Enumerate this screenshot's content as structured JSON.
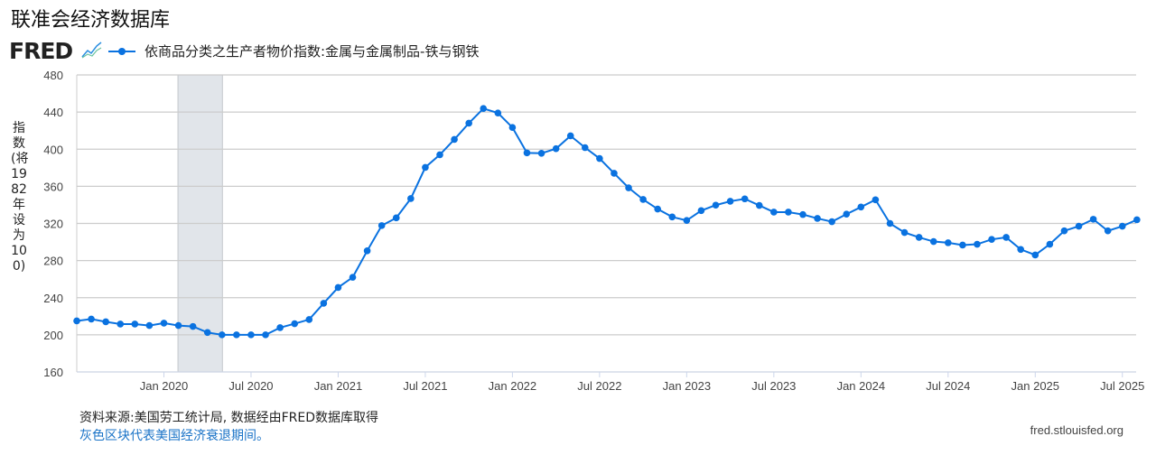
{
  "header": {
    "title": "联准会经济数据库",
    "logo": "FRED"
  },
  "legend": {
    "label": "依商品分类之生产者物价指数:金属与金属制品-铁与钢铁"
  },
  "footer": {
    "source": "资料来源:美国劳工统计局, 数据经由FRED数据库取得",
    "recession_note": "灰色区块代表美国经济衰退期间。",
    "site": "fred.stlouisfed.org"
  },
  "colors": {
    "series": "#0a72e0",
    "recession": "#e1e5ea",
    "grid": "#cccccc"
  },
  "chart_data": {
    "type": "line",
    "title": "",
    "ylabel": "指数(将1982年设为100)",
    "xlabel": "",
    "ylim": [
      160,
      480
    ],
    "yticks": [
      160,
      200,
      240,
      280,
      320,
      360,
      400,
      440,
      480
    ],
    "xtick_labels": [
      "Jan 2020",
      "Jul 2020",
      "Jan 2021",
      "Jul 2021",
      "Jan 2022",
      "Jul 2022",
      "Jan 2023",
      "Jul 2023",
      "Jan 2024",
      "Jul 2024",
      "Jan 2025",
      "Jul 2025"
    ],
    "grid": true,
    "legend_position": "top-left",
    "recessions": [
      {
        "start": "2020-02",
        "end": "2020-04"
      }
    ],
    "start": "2019-07",
    "frequency": "monthly",
    "series": [
      {
        "name": "依商品分类之生产者物价指数:金属与金属制品-铁与钢铁",
        "values": [
          215,
          217,
          214,
          211.6,
          211.6,
          210,
          212.6,
          210,
          209,
          202.5,
          200,
          200,
          200,
          200,
          207.7,
          212,
          216.5,
          234,
          251,
          262,
          290.5,
          317.7,
          326,
          346.8,
          380.4,
          394,
          410.5,
          428,
          443.8,
          439,
          423.4,
          396,
          395.6,
          400.5,
          414.4,
          401.7,
          390,
          374,
          358.4,
          345.8,
          335.5,
          327,
          323.2,
          333.8,
          339.7,
          343.9,
          346.5,
          339.4,
          332.2,
          332.2,
          329.6,
          325.4,
          321.9,
          330,
          337.7,
          345.5,
          320,
          310.2,
          305,
          300.5,
          299.2,
          296.7,
          297.6,
          302.8,
          305,
          292,
          286,
          297.6,
          312,
          317,
          324.5,
          312,
          317,
          324
        ]
      }
    ]
  }
}
